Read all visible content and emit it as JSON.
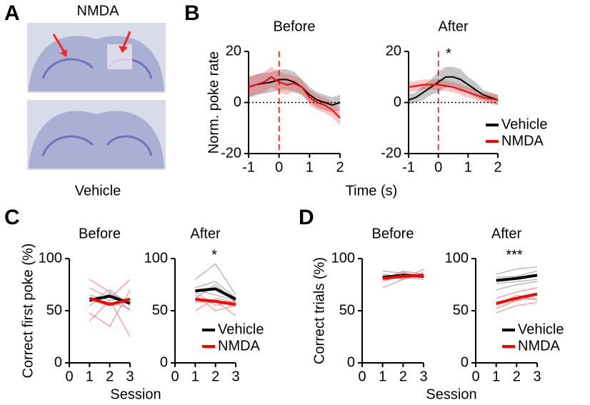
{
  "panel_letters": [
    "A",
    "B",
    "C",
    "D"
  ],
  "panel_a": {
    "top_label": "NMDA",
    "bottom_label": "Vehicle"
  },
  "chart_data": [
    {
      "type": "line",
      "title": "Before",
      "ylabel": "Norm. poke rate",
      "xlabel": "Time (s)",
      "x": [
        -1,
        -0.75,
        -0.5,
        -0.25,
        0,
        0.25,
        0.5,
        0.75,
        1,
        1.25,
        1.5,
        1.75,
        2
      ],
      "xlim": [
        -1,
        2
      ],
      "xticks": [
        -1,
        0,
        1,
        2
      ],
      "ylim": [
        -20,
        20
      ],
      "yticks": [
        -20,
        0,
        20
      ],
      "series": [
        {
          "name": "Vehicle",
          "color": "#000000",
          "values": [
            6,
            7,
            7.5,
            8,
            9,
            9,
            8,
            6,
            3,
            1,
            0,
            -1,
            0
          ],
          "sem": [
            4,
            4,
            4,
            4,
            4,
            4,
            4,
            3,
            3,
            3,
            3,
            3,
            3
          ]
        },
        {
          "name": "NMDA",
          "color": "#ff0000",
          "values": [
            6,
            7,
            8,
            10,
            8,
            7,
            7.5,
            6,
            2,
            0,
            -1,
            -3,
            -6
          ],
          "sem": [
            4,
            4,
            4,
            4,
            4,
            4,
            3,
            3,
            3,
            3,
            3,
            3,
            3
          ]
        }
      ]
    },
    {
      "type": "line",
      "title": "After",
      "annotation": "*",
      "legend": "right",
      "x": [
        -1,
        -0.75,
        -0.5,
        -0.25,
        0,
        0.25,
        0.5,
        0.75,
        1,
        1.25,
        1.5,
        1.75,
        2
      ],
      "xlim": [
        -1,
        2
      ],
      "xticks": [
        -1,
        0,
        1,
        2
      ],
      "ylim": [
        -20,
        20
      ],
      "yticks": [
        -20,
        0,
        20
      ],
      "series": [
        {
          "name": "Vehicle",
          "color": "#000000",
          "values": [
            1,
            2,
            4,
            6,
            8,
            10,
            10,
            9,
            7,
            5,
            3,
            2,
            1
          ],
          "sem": [
            2,
            2,
            3,
            3,
            4,
            4,
            4,
            4,
            3,
            3,
            2,
            2,
            2
          ]
        },
        {
          "name": "NMDA",
          "color": "#ff0000",
          "values": [
            6,
            6.5,
            7,
            7,
            7,
            6.5,
            6,
            5,
            4,
            3,
            2,
            1.5,
            1
          ],
          "sem": [
            2,
            2,
            2,
            2,
            2,
            2,
            2,
            2,
            2,
            2,
            2,
            2,
            2
          ]
        }
      ]
    },
    {
      "type": "line",
      "title": "Before",
      "ylabel": "Correct first poke (%)",
      "xlabel": "Session",
      "x": [
        1,
        2,
        3
      ],
      "xlim": [
        0,
        3
      ],
      "xticks": [
        0,
        1,
        2,
        3
      ],
      "ylim": [
        0,
        100
      ],
      "yticks": [
        0,
        50,
        100
      ],
      "thin_series": [
        {
          "color": "#aaaaaa",
          "values": [
            55,
            67,
            57
          ]
        },
        {
          "color": "#aaaaaa",
          "values": [
            65,
            60,
            62
          ]
        },
        {
          "color": "#aaaaaa",
          "values": [
            58,
            70,
            55
          ]
        },
        {
          "color": "#aaaaaa",
          "values": [
            62,
            58,
            52
          ]
        },
        {
          "color": "#ff9090",
          "values": [
            72,
            62,
            80
          ]
        },
        {
          "color": "#ff9090",
          "values": [
            48,
            35,
            70
          ]
        },
        {
          "color": "#ff9090",
          "values": [
            80,
            68,
            50
          ]
        },
        {
          "color": "#ff9090",
          "values": [
            40,
            60,
            25
          ]
        }
      ],
      "series": [
        {
          "name": "Vehicle",
          "color": "#000000",
          "values": [
            60,
            64,
            57
          ]
        },
        {
          "name": "NMDA",
          "color": "#ff0000",
          "values": [
            62,
            56,
            61
          ]
        }
      ]
    },
    {
      "type": "line",
      "title": "After",
      "annotation": "*",
      "legend": "lower right",
      "x": [
        1,
        2,
        3
      ],
      "xlim": [
        0,
        3
      ],
      "xticks": [
        0,
        1,
        2,
        3
      ],
      "ylim": [
        0,
        100
      ],
      "yticks": [
        0,
        50,
        100
      ],
      "thin_series": [
        {
          "color": "#aaaaaa",
          "values": [
            80,
            95,
            65
          ]
        },
        {
          "color": "#aaaaaa",
          "values": [
            62,
            75,
            58
          ]
        },
        {
          "color": "#aaaaaa",
          "values": [
            70,
            65,
            60
          ]
        },
        {
          "color": "#aaaaaa",
          "values": [
            72,
            78,
            62
          ]
        },
        {
          "color": "#ff9090",
          "values": [
            65,
            50,
            55
          ]
        },
        {
          "color": "#ff9090",
          "values": [
            50,
            62,
            58
          ]
        },
        {
          "color": "#ff9090",
          "values": [
            58,
            60,
            45
          ]
        },
        {
          "color": "#ff9090",
          "values": [
            68,
            55,
            60
          ]
        }
      ],
      "series": [
        {
          "name": "Vehicle",
          "color": "#000000",
          "values": [
            69,
            71,
            61
          ]
        },
        {
          "name": "NMDA",
          "color": "#ff0000",
          "values": [
            61,
            59,
            56
          ]
        }
      ]
    },
    {
      "type": "line",
      "title": "Before",
      "ylabel": "Correct trials (%)",
      "xlabel": "Session",
      "x": [
        1,
        2,
        3
      ],
      "xlim": [
        0,
        3
      ],
      "xticks": [
        0,
        1,
        2,
        3
      ],
      "ylim": [
        0,
        100
      ],
      "yticks": [
        0,
        50,
        100
      ],
      "thin_series": [
        {
          "color": "#aaaaaa",
          "values": [
            80,
            88,
            85
          ]
        },
        {
          "color": "#aaaaaa",
          "values": [
            72,
            80,
            90
          ]
        },
        {
          "color": "#aaaaaa",
          "values": [
            85,
            82,
            80
          ]
        },
        {
          "color": "#aaaaaa",
          "values": [
            88,
            86,
            84
          ]
        },
        {
          "color": "#ff9090",
          "values": [
            78,
            85,
            83
          ]
        },
        {
          "color": "#ff9090",
          "values": [
            85,
            80,
            87
          ]
        },
        {
          "color": "#ff9090",
          "values": [
            80,
            87,
            82
          ]
        },
        {
          "color": "#ff9090",
          "values": [
            83,
            82,
            85
          ]
        }
      ],
      "series": [
        {
          "name": "Vehicle",
          "color": "#000000",
          "values": [
            82,
            84,
            83
          ]
        },
        {
          "name": "NMDA",
          "color": "#ff0000",
          "values": [
            81,
            83,
            84
          ]
        }
      ]
    },
    {
      "type": "line",
      "title": "After",
      "annotation": "***",
      "legend": "lower right",
      "x": [
        1,
        2,
        3
      ],
      "xlim": [
        0,
        3
      ],
      "xticks": [
        0,
        1,
        2,
        3
      ],
      "ylim": [
        0,
        100
      ],
      "yticks": [
        0,
        50,
        100
      ],
      "thin_series": [
        {
          "color": "#aaaaaa",
          "values": [
            85,
            90,
            92
          ]
        },
        {
          "color": "#aaaaaa",
          "values": [
            76,
            78,
            80
          ]
        },
        {
          "color": "#aaaaaa",
          "values": [
            70,
            75,
            78
          ]
        },
        {
          "color": "#aaaaaa",
          "values": [
            82,
            83,
            88
          ]
        },
        {
          "color": "#ff9090",
          "values": [
            52,
            60,
            62
          ]
        },
        {
          "color": "#ff9090",
          "values": [
            62,
            68,
            72
          ]
        },
        {
          "color": "#ff9090",
          "values": [
            48,
            55,
            58
          ]
        },
        {
          "color": "#ff9090",
          "values": [
            55,
            65,
            60
          ]
        }
      ],
      "series": [
        {
          "name": "Vehicle",
          "color": "#000000",
          "values": [
            79,
            81,
            84
          ]
        },
        {
          "name": "NMDA",
          "color": "#ff0000",
          "values": [
            57,
            62,
            66
          ]
        }
      ]
    }
  ]
}
